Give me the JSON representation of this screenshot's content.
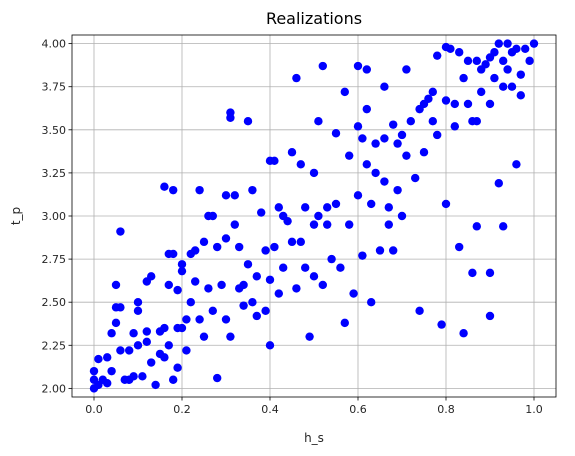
{
  "chart_data": {
    "type": "scatter",
    "title": "Realizations",
    "xlabel": "h_s",
    "ylabel": "t_p",
    "xlim": [
      -0.05,
      1.05
    ],
    "ylim": [
      1.95,
      4.05
    ],
    "xticks": [
      0.0,
      0.2,
      0.4,
      0.6,
      0.8,
      1.0
    ],
    "xtick_labels": [
      "0.0",
      "0.2",
      "0.4",
      "0.6",
      "0.8",
      "1.0"
    ],
    "yticks": [
      2.0,
      2.25,
      2.5,
      2.75,
      3.0,
      3.25,
      3.5,
      3.75,
      4.0
    ],
    "ytick_labels": [
      "2.00",
      "2.25",
      "2.50",
      "2.75",
      "3.00",
      "3.25",
      "3.50",
      "3.75",
      "4.00"
    ],
    "grid": true,
    "marker_color": "#0000ff",
    "points": [
      [
        0.0,
        2.0
      ],
      [
        0.0,
        2.05
      ],
      [
        0.0,
        2.1
      ],
      [
        0.01,
        2.17
      ],
      [
        0.01,
        2.02
      ],
      [
        0.02,
        2.05
      ],
      [
        0.03,
        2.03
      ],
      [
        0.03,
        2.18
      ],
      [
        0.04,
        2.32
      ],
      [
        0.04,
        2.1
      ],
      [
        0.05,
        2.38
      ],
      [
        0.05,
        2.47
      ],
      [
        0.05,
        2.6
      ],
      [
        0.06,
        2.91
      ],
      [
        0.06,
        2.47
      ],
      [
        0.06,
        2.22
      ],
      [
        0.07,
        2.05
      ],
      [
        0.08,
        2.05
      ],
      [
        0.08,
        2.22
      ],
      [
        0.09,
        2.07
      ],
      [
        0.09,
        2.32
      ],
      [
        0.1,
        2.5
      ],
      [
        0.1,
        2.45
      ],
      [
        0.1,
        2.25
      ],
      [
        0.11,
        2.07
      ],
      [
        0.12,
        2.33
      ],
      [
        0.12,
        2.62
      ],
      [
        0.12,
        2.27
      ],
      [
        0.13,
        2.65
      ],
      [
        0.13,
        2.15
      ],
      [
        0.14,
        2.02
      ],
      [
        0.15,
        2.2
      ],
      [
        0.15,
        2.33
      ],
      [
        0.16,
        3.17
      ],
      [
        0.16,
        2.35
      ],
      [
        0.16,
        2.18
      ],
      [
        0.17,
        2.78
      ],
      [
        0.17,
        2.6
      ],
      [
        0.17,
        2.25
      ],
      [
        0.18,
        2.05
      ],
      [
        0.18,
        3.15
      ],
      [
        0.18,
        2.78
      ],
      [
        0.19,
        2.57
      ],
      [
        0.19,
        2.35
      ],
      [
        0.19,
        2.12
      ],
      [
        0.2,
        2.35
      ],
      [
        0.2,
        2.68
      ],
      [
        0.2,
        2.72
      ],
      [
        0.21,
        2.22
      ],
      [
        0.21,
        2.4
      ],
      [
        0.22,
        2.78
      ],
      [
        0.22,
        2.5
      ],
      [
        0.23,
        2.8
      ],
      [
        0.23,
        2.62
      ],
      [
        0.24,
        3.15
      ],
      [
        0.24,
        2.4
      ],
      [
        0.25,
        2.85
      ],
      [
        0.25,
        2.3
      ],
      [
        0.26,
        3.0
      ],
      [
        0.26,
        2.58
      ],
      [
        0.27,
        3.0
      ],
      [
        0.27,
        2.45
      ],
      [
        0.28,
        2.06
      ],
      [
        0.28,
        2.82
      ],
      [
        0.29,
        2.6
      ],
      [
        0.3,
        2.87
      ],
      [
        0.3,
        3.12
      ],
      [
        0.3,
        2.4
      ],
      [
        0.31,
        3.6
      ],
      [
        0.31,
        3.57
      ],
      [
        0.31,
        2.3
      ],
      [
        0.32,
        3.12
      ],
      [
        0.32,
        2.95
      ],
      [
        0.33,
        2.58
      ],
      [
        0.33,
        2.82
      ],
      [
        0.34,
        2.48
      ],
      [
        0.34,
        2.6
      ],
      [
        0.35,
        3.55
      ],
      [
        0.35,
        2.72
      ],
      [
        0.36,
        2.5
      ],
      [
        0.36,
        3.15
      ],
      [
        0.37,
        2.65
      ],
      [
        0.37,
        2.42
      ],
      [
        0.38,
        3.02
      ],
      [
        0.39,
        2.45
      ],
      [
        0.39,
        2.8
      ],
      [
        0.4,
        3.32
      ],
      [
        0.4,
        2.25
      ],
      [
        0.4,
        2.63
      ],
      [
        0.41,
        3.32
      ],
      [
        0.41,
        2.82
      ],
      [
        0.42,
        2.55
      ],
      [
        0.42,
        3.05
      ],
      [
        0.43,
        3.0
      ],
      [
        0.43,
        2.7
      ],
      [
        0.44,
        2.97
      ],
      [
        0.45,
        3.37
      ],
      [
        0.45,
        2.85
      ],
      [
        0.46,
        3.8
      ],
      [
        0.46,
        2.58
      ],
      [
        0.47,
        3.3
      ],
      [
        0.47,
        2.85
      ],
      [
        0.48,
        3.05
      ],
      [
        0.48,
        2.7
      ],
      [
        0.49,
        2.3
      ],
      [
        0.5,
        3.25
      ],
      [
        0.5,
        2.95
      ],
      [
        0.5,
        2.65
      ],
      [
        0.51,
        3.55
      ],
      [
        0.51,
        3.0
      ],
      [
        0.52,
        3.87
      ],
      [
        0.52,
        2.6
      ],
      [
        0.53,
        2.95
      ],
      [
        0.53,
        3.05
      ],
      [
        0.54,
        2.75
      ],
      [
        0.55,
        3.48
      ],
      [
        0.55,
        3.07
      ],
      [
        0.56,
        2.7
      ],
      [
        0.57,
        3.72
      ],
      [
        0.57,
        2.38
      ],
      [
        0.58,
        3.35
      ],
      [
        0.58,
        2.95
      ],
      [
        0.59,
        2.55
      ],
      [
        0.6,
        3.87
      ],
      [
        0.6,
        3.52
      ],
      [
        0.6,
        3.12
      ],
      [
        0.61,
        3.45
      ],
      [
        0.61,
        2.77
      ],
      [
        0.62,
        3.85
      ],
      [
        0.62,
        3.62
      ],
      [
        0.62,
        3.3
      ],
      [
        0.63,
        2.5
      ],
      [
        0.63,
        3.07
      ],
      [
        0.64,
        3.42
      ],
      [
        0.64,
        3.25
      ],
      [
        0.65,
        2.8
      ],
      [
        0.66,
        3.75
      ],
      [
        0.66,
        3.45
      ],
      [
        0.66,
        3.2
      ],
      [
        0.67,
        3.05
      ],
      [
        0.67,
        2.95
      ],
      [
        0.68,
        3.53
      ],
      [
        0.68,
        2.8
      ],
      [
        0.69,
        3.42
      ],
      [
        0.69,
        3.15
      ],
      [
        0.7,
        3.47
      ],
      [
        0.7,
        3.0
      ],
      [
        0.71,
        3.85
      ],
      [
        0.71,
        3.35
      ],
      [
        0.72,
        3.55
      ],
      [
        0.73,
        3.22
      ],
      [
        0.74,
        3.62
      ],
      [
        0.74,
        2.45
      ],
      [
        0.75,
        3.65
      ],
      [
        0.75,
        3.37
      ],
      [
        0.76,
        3.68
      ],
      [
        0.77,
        3.72
      ],
      [
        0.77,
        3.55
      ],
      [
        0.78,
        3.93
      ],
      [
        0.78,
        3.47
      ],
      [
        0.79,
        2.37
      ],
      [
        0.8,
        3.98
      ],
      [
        0.8,
        3.67
      ],
      [
        0.8,
        3.07
      ],
      [
        0.81,
        3.97
      ],
      [
        0.82,
        3.52
      ],
      [
        0.82,
        3.65
      ],
      [
        0.83,
        3.95
      ],
      [
        0.83,
        2.82
      ],
      [
        0.84,
        3.8
      ],
      [
        0.84,
        2.32
      ],
      [
        0.85,
        3.65
      ],
      [
        0.85,
        3.9
      ],
      [
        0.86,
        3.55
      ],
      [
        0.86,
        2.67
      ],
      [
        0.87,
        3.9
      ],
      [
        0.87,
        3.55
      ],
      [
        0.87,
        2.94
      ],
      [
        0.88,
        3.85
      ],
      [
        0.88,
        3.72
      ],
      [
        0.89,
        3.88
      ],
      [
        0.9,
        3.92
      ],
      [
        0.9,
        3.65
      ],
      [
        0.9,
        2.67
      ],
      [
        0.9,
        2.42
      ],
      [
        0.91,
        3.95
      ],
      [
        0.91,
        3.8
      ],
      [
        0.92,
        4.0
      ],
      [
        0.92,
        3.19
      ],
      [
        0.93,
        3.9
      ],
      [
        0.93,
        3.75
      ],
      [
        0.93,
        2.94
      ],
      [
        0.94,
        4.0
      ],
      [
        0.94,
        3.85
      ],
      [
        0.95,
        3.95
      ],
      [
        0.95,
        3.75
      ],
      [
        0.96,
        3.97
      ],
      [
        0.96,
        3.3
      ],
      [
        0.97,
        3.82
      ],
      [
        0.97,
        3.7
      ],
      [
        0.98,
        3.97
      ],
      [
        0.99,
        3.9
      ],
      [
        1.0,
        4.0
      ]
    ]
  }
}
